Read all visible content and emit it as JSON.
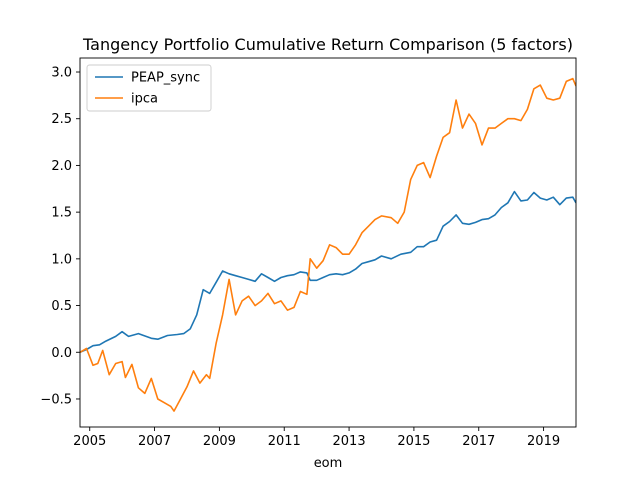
{
  "chart_data": {
    "type": "line",
    "title": "Tangency Portfolio Cumulative Return Comparison (5 factors)",
    "xlabel": "eom",
    "ylabel": "",
    "xlim": [
      2004.7,
      2020.0
    ],
    "ylim": [
      -0.8,
      3.15
    ],
    "x_ticks": [
      2005,
      2007,
      2009,
      2011,
      2013,
      2015,
      2017,
      2019
    ],
    "x_tick_labels": [
      "2005",
      "2007",
      "2009",
      "2011",
      "2013",
      "2015",
      "2017",
      "2019"
    ],
    "y_ticks": [
      -0.5,
      0.0,
      0.5,
      1.0,
      1.5,
      2.0,
      2.5,
      3.0
    ],
    "y_tick_labels": [
      "−0.5",
      "0.0",
      "0.5",
      "1.0",
      "1.5",
      "2.0",
      "2.5",
      "3.0"
    ],
    "legend_position": "top-left",
    "grid": false,
    "series": [
      {
        "name": "PEAP_sync",
        "color": "#1f77b4",
        "points": [
          [
            2004.7,
            0.0
          ],
          [
            2004.9,
            0.03
          ],
          [
            2005.1,
            0.07
          ],
          [
            2005.3,
            0.08
          ],
          [
            2005.5,
            0.12
          ],
          [
            2005.8,
            0.17
          ],
          [
            2006.0,
            0.22
          ],
          [
            2006.2,
            0.17
          ],
          [
            2006.5,
            0.2
          ],
          [
            2006.9,
            0.15
          ],
          [
            2007.1,
            0.14
          ],
          [
            2007.4,
            0.18
          ],
          [
            2007.7,
            0.19
          ],
          [
            2007.9,
            0.2
          ],
          [
            2008.1,
            0.25
          ],
          [
            2008.3,
            0.4
          ],
          [
            2008.5,
            0.67
          ],
          [
            2008.7,
            0.63
          ],
          [
            2008.9,
            0.75
          ],
          [
            2009.1,
            0.87
          ],
          [
            2009.3,
            0.84
          ],
          [
            2009.5,
            0.82
          ],
          [
            2009.7,
            0.8
          ],
          [
            2009.9,
            0.78
          ],
          [
            2010.1,
            0.76
          ],
          [
            2010.3,
            0.84
          ],
          [
            2010.5,
            0.8
          ],
          [
            2010.7,
            0.76
          ],
          [
            2010.9,
            0.8
          ],
          [
            2011.1,
            0.82
          ],
          [
            2011.3,
            0.83
          ],
          [
            2011.5,
            0.86
          ],
          [
            2011.7,
            0.85
          ],
          [
            2011.8,
            0.77
          ],
          [
            2012.0,
            0.77
          ],
          [
            2012.2,
            0.8
          ],
          [
            2012.4,
            0.83
          ],
          [
            2012.6,
            0.84
          ],
          [
            2012.8,
            0.83
          ],
          [
            2013.0,
            0.85
          ],
          [
            2013.2,
            0.89
          ],
          [
            2013.4,
            0.95
          ],
          [
            2013.6,
            0.97
          ],
          [
            2013.8,
            0.99
          ],
          [
            2014.0,
            1.03
          ],
          [
            2014.3,
            1.0
          ],
          [
            2014.6,
            1.05
          ],
          [
            2014.9,
            1.07
          ],
          [
            2015.1,
            1.13
          ],
          [
            2015.3,
            1.13
          ],
          [
            2015.5,
            1.18
          ],
          [
            2015.7,
            1.2
          ],
          [
            2015.9,
            1.35
          ],
          [
            2016.1,
            1.4
          ],
          [
            2016.3,
            1.47
          ],
          [
            2016.5,
            1.38
          ],
          [
            2016.7,
            1.37
          ],
          [
            2016.9,
            1.39
          ],
          [
            2017.1,
            1.42
          ],
          [
            2017.3,
            1.43
          ],
          [
            2017.5,
            1.47
          ],
          [
            2017.7,
            1.55
          ],
          [
            2017.9,
            1.6
          ],
          [
            2018.1,
            1.72
          ],
          [
            2018.3,
            1.62
          ],
          [
            2018.5,
            1.63
          ],
          [
            2018.7,
            1.71
          ],
          [
            2018.9,
            1.65
          ],
          [
            2019.1,
            1.63
          ],
          [
            2019.3,
            1.66
          ],
          [
            2019.5,
            1.58
          ],
          [
            2019.7,
            1.65
          ],
          [
            2019.9,
            1.66
          ],
          [
            2020.0,
            1.6
          ]
        ]
      },
      {
        "name": "ipca",
        "color": "#ff7f0e",
        "points": [
          [
            2004.7,
            0.0
          ],
          [
            2004.9,
            0.04
          ],
          [
            2005.1,
            -0.14
          ],
          [
            2005.25,
            -0.12
          ],
          [
            2005.4,
            0.02
          ],
          [
            2005.6,
            -0.24
          ],
          [
            2005.8,
            -0.12
          ],
          [
            2006.0,
            -0.1
          ],
          [
            2006.1,
            -0.27
          ],
          [
            2006.3,
            -0.13
          ],
          [
            2006.5,
            -0.38
          ],
          [
            2006.7,
            -0.44
          ],
          [
            2006.9,
            -0.28
          ],
          [
            2007.1,
            -0.5
          ],
          [
            2007.3,
            -0.54
          ],
          [
            2007.5,
            -0.58
          ],
          [
            2007.6,
            -0.63
          ],
          [
            2007.8,
            -0.5
          ],
          [
            2008.0,
            -0.37
          ],
          [
            2008.2,
            -0.2
          ],
          [
            2008.4,
            -0.33
          ],
          [
            2008.6,
            -0.24
          ],
          [
            2008.7,
            -0.28
          ],
          [
            2008.9,
            0.1
          ],
          [
            2009.1,
            0.4
          ],
          [
            2009.3,
            0.78
          ],
          [
            2009.5,
            0.4
          ],
          [
            2009.7,
            0.55
          ],
          [
            2009.9,
            0.6
          ],
          [
            2010.1,
            0.5
          ],
          [
            2010.3,
            0.55
          ],
          [
            2010.5,
            0.63
          ],
          [
            2010.7,
            0.52
          ],
          [
            2010.9,
            0.55
          ],
          [
            2011.1,
            0.45
          ],
          [
            2011.3,
            0.48
          ],
          [
            2011.5,
            0.65
          ],
          [
            2011.7,
            0.62
          ],
          [
            2011.8,
            1.0
          ],
          [
            2012.0,
            0.9
          ],
          [
            2012.2,
            0.98
          ],
          [
            2012.4,
            1.15
          ],
          [
            2012.6,
            1.12
          ],
          [
            2012.8,
            1.05
          ],
          [
            2013.0,
            1.05
          ],
          [
            2013.2,
            1.15
          ],
          [
            2013.4,
            1.28
          ],
          [
            2013.6,
            1.35
          ],
          [
            2013.8,
            1.42
          ],
          [
            2014.0,
            1.46
          ],
          [
            2014.3,
            1.44
          ],
          [
            2014.5,
            1.38
          ],
          [
            2014.7,
            1.5
          ],
          [
            2014.9,
            1.85
          ],
          [
            2015.1,
            2.0
          ],
          [
            2015.3,
            2.03
          ],
          [
            2015.5,
            1.87
          ],
          [
            2015.7,
            2.1
          ],
          [
            2015.9,
            2.3
          ],
          [
            2016.1,
            2.35
          ],
          [
            2016.3,
            2.7
          ],
          [
            2016.5,
            2.4
          ],
          [
            2016.7,
            2.55
          ],
          [
            2016.9,
            2.45
          ],
          [
            2017.1,
            2.22
          ],
          [
            2017.3,
            2.4
          ],
          [
            2017.5,
            2.4
          ],
          [
            2017.7,
            2.45
          ],
          [
            2017.9,
            2.5
          ],
          [
            2018.1,
            2.5
          ],
          [
            2018.3,
            2.48
          ],
          [
            2018.5,
            2.6
          ],
          [
            2018.7,
            2.82
          ],
          [
            2018.9,
            2.86
          ],
          [
            2019.1,
            2.72
          ],
          [
            2019.3,
            2.7
          ],
          [
            2019.5,
            2.72
          ],
          [
            2019.7,
            2.9
          ],
          [
            2019.9,
            2.93
          ],
          [
            2020.0,
            2.85
          ]
        ]
      }
    ]
  }
}
